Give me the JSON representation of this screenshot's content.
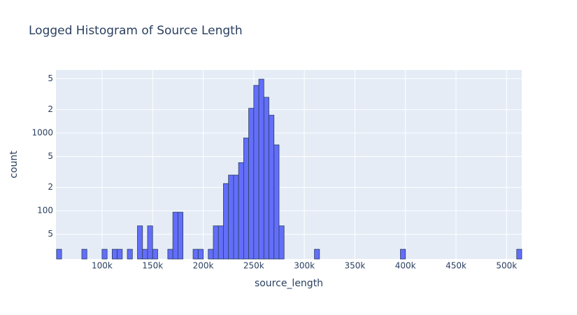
{
  "chart_data": {
    "type": "histogram",
    "title": "Logged Histogram of Source Length",
    "x_label": "source_length",
    "y_label": "count",
    "color": "#636efa",
    "log_y": true,
    "grid": true,
    "bins": [
      55000,
      60000,
      65000,
      70000,
      75000,
      80000,
      85000,
      90000,
      95000,
      100000,
      105000,
      110000,
      115000,
      120000,
      125000,
      130000,
      135000,
      140000,
      145000,
      150000,
      155000,
      160000,
      165000,
      170000,
      175000,
      180000,
      185000,
      190000,
      195000,
      200000,
      205000,
      210000,
      215000,
      220000,
      225000,
      230000,
      235000,
      240000,
      245000,
      250000,
      255000,
      260000,
      265000,
      270000,
      275000,
      280000,
      285000,
      290000,
      295000,
      300000,
      305000,
      310000,
      315000,
      320000,
      325000,
      330000,
      335000,
      340000,
      345000,
      350000,
      355000,
      360000,
      365000,
      370000,
      375000,
      380000,
      385000,
      390000,
      395000,
      400000,
      405000,
      410000,
      415000,
      420000,
      425000,
      430000,
      435000,
      440000,
      445000,
      450000,
      455000,
      460000,
      465000,
      470000,
      475000,
      480000,
      485000,
      490000,
      495000,
      500000,
      505000,
      510000,
      515000
    ],
    "values": [
      32,
      0,
      0,
      0,
      0,
      32,
      0,
      0,
      0,
      32,
      0,
      32,
      32,
      0,
      32,
      0,
      64,
      32,
      64,
      32,
      0,
      0,
      32,
      96,
      96,
      0,
      0,
      32,
      32,
      0,
      32,
      64,
      64,
      224,
      288,
      288,
      416,
      864,
      2080,
      4096,
      4928,
      2880,
      1696,
      704,
      64,
      0,
      0,
      0,
      0,
      0,
      0,
      32,
      0,
      0,
      0,
      0,
      0,
      0,
      0,
      0,
      0,
      0,
      0,
      0,
      0,
      0,
      0,
      0,
      32,
      0,
      0,
      0,
      0,
      0,
      0,
      0,
      0,
      0,
      0,
      0,
      0,
      0,
      0,
      0,
      0,
      0,
      0,
      0,
      0,
      0,
      0,
      32
    ],
    "xlim": [
      54400,
      515000
    ],
    "ylim": [
      24,
      6460
    ],
    "xticks": [
      {
        "value": 100000,
        "label": "100k"
      },
      {
        "value": 150000,
        "label": "150k"
      },
      {
        "value": 200000,
        "label": "200k"
      },
      {
        "value": 250000,
        "label": "250k"
      },
      {
        "value": 300000,
        "label": "300k"
      },
      {
        "value": 350000,
        "label": "350k"
      },
      {
        "value": 400000,
        "label": "400k"
      },
      {
        "value": 450000,
        "label": "450k"
      },
      {
        "value": 500000,
        "label": "500k"
      }
    ],
    "yticks": [
      {
        "value": 50,
        "label": "5"
      },
      100,
      {
        "value": 200,
        "label": "2"
      },
      {
        "value": 500,
        "label": "5"
      },
      1000,
      {
        "value": 2000,
        "label": "2"
      },
      {
        "value": 5000,
        "label": "5"
      }
    ]
  }
}
